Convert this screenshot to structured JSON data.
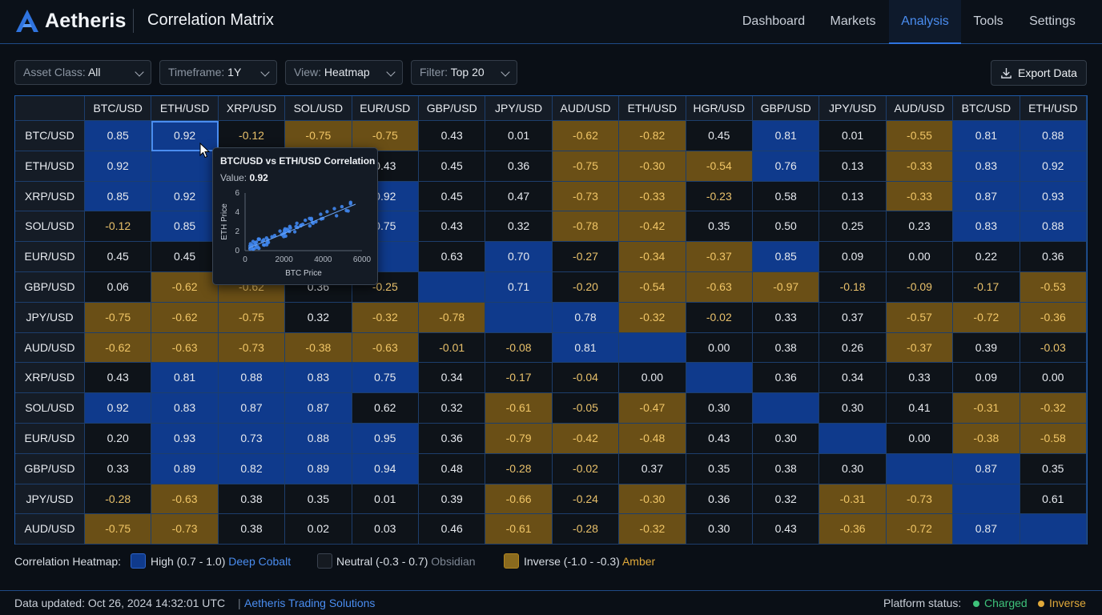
{
  "app": {
    "brand": "Aetheris",
    "page_title": "Correlation Matrix",
    "nav": [
      "Dashboard",
      "Markets",
      "Analysis",
      "Tools",
      "Settings"
    ],
    "active_nav": "Analysis"
  },
  "toolbar": {
    "filters": [
      {
        "label": "Asset Class:",
        "value": "All"
      },
      {
        "label": "Timeframe:",
        "value": "1Y"
      },
      {
        "label": "View:",
        "value": "Heatmap"
      },
      {
        "label": "Filter:",
        "value": "Top 20"
      }
    ],
    "export_label": "Export Data"
  },
  "matrix": {
    "columns": [
      "BTC/USD",
      "ETH/USD",
      "XRP/USD",
      "SOL/USD",
      "EUR/USD",
      "GBP/USD",
      "JPY/USD",
      "AUD/USD",
      "ETH/USD",
      "HGR/USD",
      "GBP/USD",
      "JPY/USD",
      "AUD/USD",
      "BTC/USD",
      "ETH/USD"
    ],
    "rows": [
      "BTC/USD",
      "ETH/USD",
      "XRP/USD",
      "SOL/USD",
      "EUR/USD",
      "GBP/USD",
      "JPY/USD",
      "AUD/USD",
      "XRP/USD",
      "SOL/USD",
      "EUR/USD",
      "GBP/USD",
      "JPY/USD",
      "AUD/USD"
    ],
    "values": [
      [
        "0.85",
        "0.92",
        "-0.12",
        "-0.75",
        "-0.75",
        "0.43",
        "0.01",
        "-0.62",
        "-0.82",
        "0.45",
        "0.81",
        "0.01",
        "-0.55",
        "0.81",
        "0.88"
      ],
      [
        "0.92",
        "",
        "",
        "",
        "0.43",
        "0.45",
        "0.36",
        "-0.75",
        "-0.30",
        "-0.54",
        "0.76",
        "0.13",
        "-0.33",
        "0.83",
        "0.92"
      ],
      [
        "0.85",
        "0.92",
        "",
        "",
        "0.92",
        "0.45",
        "0.47",
        "-0.73",
        "-0.33",
        "-0.23",
        "0.58",
        "0.13",
        "-0.33",
        "0.87",
        "0.93"
      ],
      [
        "-0.12",
        "0.85",
        "",
        "",
        "0.75",
        "0.43",
        "0.32",
        "-0.78",
        "-0.42",
        "0.35",
        "0.50",
        "0.25",
        "0.23",
        "0.83",
        "0.88"
      ],
      [
        "0.45",
        "0.45",
        "",
        "",
        "",
        "0.63",
        "0.70",
        "-0.27",
        "-0.34",
        "-0.37",
        "0.85",
        "0.09",
        "0.00",
        "0.22",
        "0.36"
      ],
      [
        "0.06",
        "-0.62",
        "-0.62",
        "0.36",
        "-0.25",
        "",
        "0.71",
        "-0.20",
        "-0.54",
        "-0.63",
        "-0.97",
        "-0.18",
        "-0.09",
        "-0.17",
        "-0.53"
      ],
      [
        "-0.75",
        "-0.62",
        "-0.75",
        "0.32",
        "-0.32",
        "-0.78",
        "",
        "0.78",
        "-0.32",
        "-0.02",
        "0.33",
        "0.37",
        "-0.57",
        "-0.72",
        "-0.36"
      ],
      [
        "-0.62",
        "-0.63",
        "-0.73",
        "-0.38",
        "-0.63",
        "-0.01",
        "-0.08",
        "0.81",
        "",
        "0.00",
        "0.38",
        "0.26",
        "-0.37",
        "0.39",
        "-0.03"
      ],
      [
        "0.43",
        "0.81",
        "0.88",
        "0.83",
        "0.75",
        "0.34",
        "-0.17",
        "-0.04",
        "0.00",
        "",
        "0.36",
        "0.34",
        "0.33",
        "0.09",
        "0.00"
      ],
      [
        "0.92",
        "0.83",
        "0.87",
        "0.87",
        "0.62",
        "0.32",
        "-0.61",
        "-0.05",
        "-0.47",
        "0.30",
        "",
        "0.30",
        "0.41",
        "-0.31",
        "-0.32"
      ],
      [
        "0.20",
        "0.93",
        "0.73",
        "0.88",
        "0.95",
        "0.36",
        "-0.79",
        "-0.42",
        "-0.48",
        "0.43",
        "0.30",
        "",
        "0.00",
        "-0.38",
        "-0.58"
      ],
      [
        "0.33",
        "0.89",
        "0.82",
        "0.89",
        "0.94",
        "0.48",
        "-0.28",
        "-0.02",
        "0.37",
        "0.35",
        "0.38",
        "0.30",
        "",
        "0.87",
        "0.35"
      ],
      [
        "-0.28",
        "-0.63",
        "0.38",
        "0.35",
        "0.01",
        "0.39",
        "-0.66",
        "-0.24",
        "-0.30",
        "0.36",
        "0.32",
        "-0.31",
        "-0.73",
        "",
        "0.61"
      ],
      [
        "-0.75",
        "-0.73",
        "0.38",
        "0.02",
        "0.03",
        "0.46",
        "-0.61",
        "-0.28",
        "-0.32",
        "0.30",
        "0.43",
        "-0.36",
        "-0.72",
        "0.87",
        ""
      ]
    ]
  },
  "tooltip": {
    "title": "BTC/USD vs ETH/USD Correlation",
    "value_label": "Value:",
    "value": "0.92",
    "xlabel": "BTC Price",
    "ylabel": "ETH Price",
    "xticks": [
      "0",
      "2000",
      "4000",
      "6000"
    ],
    "yticks": [
      "0",
      "2",
      "4",
      "6"
    ]
  },
  "legend": {
    "title": "Correlation Heatmap:",
    "items": [
      {
        "label": "High (0.7 - 1.0)",
        "name": "Deep Cobalt",
        "color": "#0f3a8c",
        "name_color": "#4a8df0"
      },
      {
        "label": "Neutral (-0.3 - 0.7)",
        "name": "Obsidian",
        "color": "#151a21",
        "name_color": "#7d8693"
      },
      {
        "label": "Inverse (-1.0 - -0.3)",
        "name": "Amber",
        "color": "#8a6a1e",
        "name_color": "#e0a93a"
      }
    ]
  },
  "footer": {
    "updated": "Data updated: Oct 26, 2024 14:32:01 UTC",
    "company": "Aetheris Trading Solutions",
    "status_label": "Platform status:",
    "statuses": [
      {
        "text": "Charged",
        "color": "#3ec27a"
      },
      {
        "text": "Inverse",
        "color": "#e0a93a"
      }
    ]
  },
  "colors": {
    "accent": "#2f74e0",
    "cobalt": "#0f3a8c",
    "amber": "#6a4f16",
    "obsidian": "#0e1319"
  }
}
